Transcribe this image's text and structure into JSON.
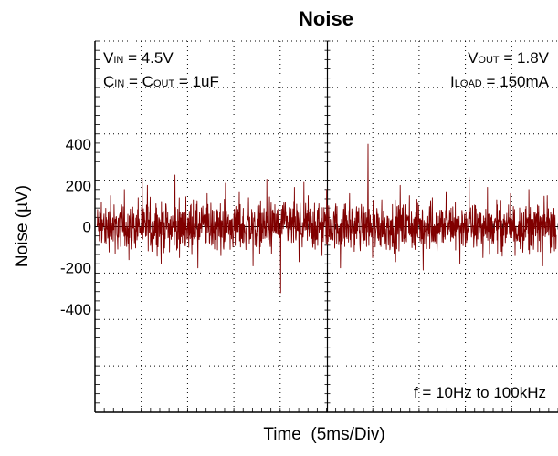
{
  "chart_data": {
    "type": "line",
    "title": "Noise",
    "xlabel": "Time  (5ms/Div)",
    "ylabel": "Noise  (µV)",
    "x_divisions": 10,
    "ylim": [
      -900,
      900
    ],
    "yticks": [
      400,
      200,
      0,
      -200,
      -400
    ],
    "ytick_labels": [
      "400",
      "200",
      "0",
      "-200",
      "-400"
    ],
    "grid": true,
    "trace_color": "#800000",
    "noise_envelope_uv": {
      "typical_peak": 160,
      "max_positive": 400,
      "max_negative": -320
    },
    "series": [
      {
        "values": [
          10,
          120,
          -80,
          150,
          -130,
          60,
          180,
          -160,
          40,
          140,
          -60,
          200,
          -120,
          90,
          -180,
          110,
          -40,
          250,
          -150,
          70,
          -100,
          130,
          -200,
          80,
          160,
          -90,
          30,
          -140,
          210,
          -110,
          50,
          170,
          -70,
          140,
          -190,
          100,
          -30,
          230,
          -130,
          60,
          -320,
          120,
          -50,
          190,
          -170,
          20,
          150,
          -100,
          80,
          -140,
          180,
          -60,
          110,
          -200,
          40,
          160,
          -120,
          90,
          -80,
          400,
          -150,
          70,
          130,
          -110,
          30,
          -170,
          200,
          -60,
          150,
          -90,
          100,
          -210,
          50,
          140,
          -130,
          80,
          170,
          -70,
          120,
          -180,
          60,
          240,
          -100,
          40,
          -150,
          190,
          -80,
          130,
          -120,
          20,
          160,
          -140,
          90,
          -60,
          180,
          -110,
          70,
          -190,
          150,
          -50
        ]
      }
    ],
    "annotations": {
      "vin": {
        "symbol": "V",
        "sub": "IN",
        "rest": " = 4.5V"
      },
      "cap": {
        "c1": "C",
        "c1_sub": "IN",
        "mid": " = C",
        "c2_sub": "OUT",
        "rest": " = 1uF"
      },
      "vout": {
        "symbol": "V",
        "sub": "OUT",
        "rest": " = 1.8V"
      },
      "iload": {
        "symbol": "I",
        "sub": "LOAD",
        "rest": " = 150mA"
      },
      "bandwidth": "f = 10Hz to 100kHz"
    }
  }
}
